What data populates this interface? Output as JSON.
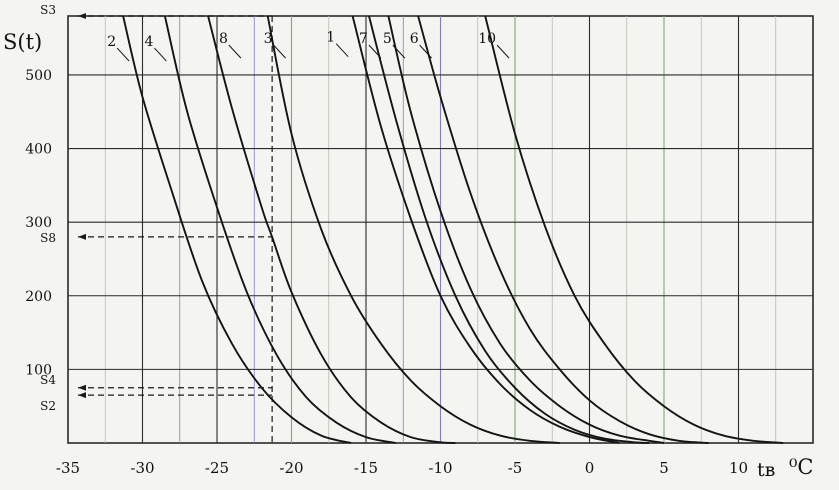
{
  "chart_data": {
    "type": "line",
    "ylabel": "S(t)",
    "xlabel": "tв",
    "xunit": "⁰C",
    "xlim": [
      -35,
      15
    ],
    "ylim": [
      0,
      580
    ],
    "x_ticks": [
      -35,
      -30,
      -25,
      -20,
      -15,
      -10,
      -5,
      0,
      5,
      10
    ],
    "x_tick_labels": [
      "-35",
      "-30",
      "-25",
      "-20",
      "-15",
      "-10",
      "-5",
      "0",
      "5",
      "10"
    ],
    "y_ticks": [
      100,
      200,
      300,
      400,
      500
    ],
    "y_tick_labels": [
      "100",
      "200",
      "300",
      "400",
      "500"
    ],
    "grid": true,
    "series": [
      {
        "name": "1",
        "x": [
          -15.9,
          -14.0,
          -12.0,
          -10.0,
          -8.0,
          -6.0,
          -4.0,
          -2.0,
          0.0,
          2.0
        ],
        "y": [
          580,
          430,
          305,
          200,
          130,
          80,
          45,
          22,
          8,
          0
        ]
      },
      {
        "name": "2",
        "x": [
          -31.3,
          -30.0,
          -28.0,
          -26.0,
          -24.0,
          -22.0,
          -20.0,
          -18.0,
          -16.0
        ],
        "y": [
          580,
          470,
          340,
          220,
          135,
          75,
          35,
          10,
          0
        ]
      },
      {
        "name": "3",
        "x": [
          -21.6,
          -20.0,
          -18.0,
          -16.0,
          -14.0,
          -12.0,
          -10.0,
          -8.0,
          -6.0,
          -4.0,
          -2.0
        ],
        "y": [
          580,
          420,
          290,
          200,
          135,
          85,
          50,
          25,
          10,
          3,
          0
        ]
      },
      {
        "name": "4",
        "x": [
          -28.5,
          -27.0,
          -25.0,
          -23.0,
          -21.0,
          -19.0,
          -17.0,
          -15.0,
          -13.0
        ],
        "y": [
          580,
          450,
          320,
          205,
          120,
          62,
          28,
          8,
          0
        ]
      },
      {
        "name": "5",
        "x": [
          -13.5,
          -12.0,
          -10.0,
          -8.0,
          -6.0,
          -4.0,
          -2.0,
          0.0,
          2.0,
          4.0,
          5.0
        ],
        "y": [
          580,
          450,
          315,
          210,
          135,
          85,
          50,
          25,
          10,
          3,
          0
        ]
      },
      {
        "name": "6",
        "x": [
          -11.5,
          -10.0,
          -8.0,
          -6.0,
          -4.0,
          -2.0,
          0.0,
          2.0,
          4.0,
          6.0,
          8.0
        ],
        "y": [
          580,
          470,
          340,
          235,
          155,
          100,
          58,
          30,
          12,
          3,
          0
        ]
      },
      {
        "name": "7",
        "x": [
          -14.8,
          -13.0,
          -11.0,
          -9.0,
          -7.0,
          -5.0,
          -3.0,
          -1.0,
          1.0,
          3.0,
          4.0
        ],
        "y": [
          580,
          440,
          305,
          200,
          125,
          75,
          40,
          18,
          6,
          1,
          0
        ]
      },
      {
        "name": "8",
        "x": [
          -25.6,
          -24.0,
          -22.0,
          -21.3,
          -20.0,
          -18.0,
          -16.0,
          -14.0,
          -12.0,
          -10.0,
          -9.0
        ],
        "y": [
          580,
          455,
          320,
          280,
          205,
          120,
          62,
          28,
          8,
          1,
          0
        ]
      },
      {
        "name": "10",
        "x": [
          -7.0,
          -5.0,
          -3.0,
          -1.0,
          1.0,
          3.0,
          5.0,
          7.0,
          9.0,
          11.0,
          13.0
        ],
        "y": [
          580,
          420,
          295,
          200,
          135,
          85,
          50,
          25,
          10,
          3,
          0
        ]
      }
    ],
    "series_label_points": [
      {
        "label": "2",
        "x": -31.5,
        "y": 531
      },
      {
        "label": "4",
        "x": -29.0,
        "y": 531
      },
      {
        "label": "8",
        "x": -24.0,
        "y": 535
      },
      {
        "label": "3",
        "x": -21.0,
        "y": 535
      },
      {
        "label": "1",
        "x": -16.8,
        "y": 537
      },
      {
        "label": "7",
        "x": -14.6,
        "y": 535
      },
      {
        "label": "5",
        "x": -13.0,
        "y": 535
      },
      {
        "label": "6",
        "x": -11.2,
        "y": 535
      },
      {
        "label": "10",
        "x": -6.0,
        "y": 535
      }
    ],
    "annotations": [
      {
        "label": "S3",
        "y": 580
      },
      {
        "label": "S8",
        "y": 280
      },
      {
        "label": "S4",
        "y": 75
      },
      {
        "label": "S2",
        "y": 65
      }
    ],
    "reference_line_x": -21.3
  },
  "colors": {
    "background": "#f4f4f1",
    "curve": "#141414",
    "grid_dark": "#2a2a2a",
    "grid_purple": "#8c7bbf",
    "grid_green": "#7fa87a",
    "grid_light": "#b9b9b4"
  }
}
